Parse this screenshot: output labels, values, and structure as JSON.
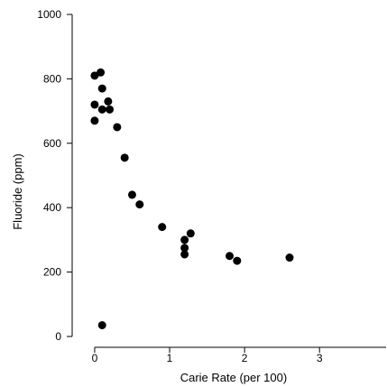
{
  "chart_data": {
    "type": "scatter",
    "xlabel": "Carie Rate (per 100)",
    "ylabel": "Fluoride (ppm)",
    "xlim": [
      -0.3,
      3.9
    ],
    "ylim": [
      0,
      1000
    ],
    "xticks": [
      0,
      1,
      2,
      3
    ],
    "yticks": [
      0,
      200,
      400,
      600,
      800,
      1000
    ],
    "grid": false,
    "marker_color": "#000000",
    "series": [
      {
        "x": [
          0.0,
          0.08,
          0.1,
          0.0,
          0.1,
          0.18,
          0.2,
          0.0,
          0.3,
          0.4,
          0.5,
          0.6,
          0.9,
          1.2,
          1.2,
          1.2,
          1.28,
          1.8,
          1.9,
          2.6,
          0.1
        ],
        "y": [
          810,
          820,
          770,
          720,
          705,
          730,
          705,
          670,
          650,
          555,
          440,
          410,
          340,
          300,
          275,
          255,
          320,
          250,
          235,
          245,
          35
        ]
      }
    ]
  }
}
